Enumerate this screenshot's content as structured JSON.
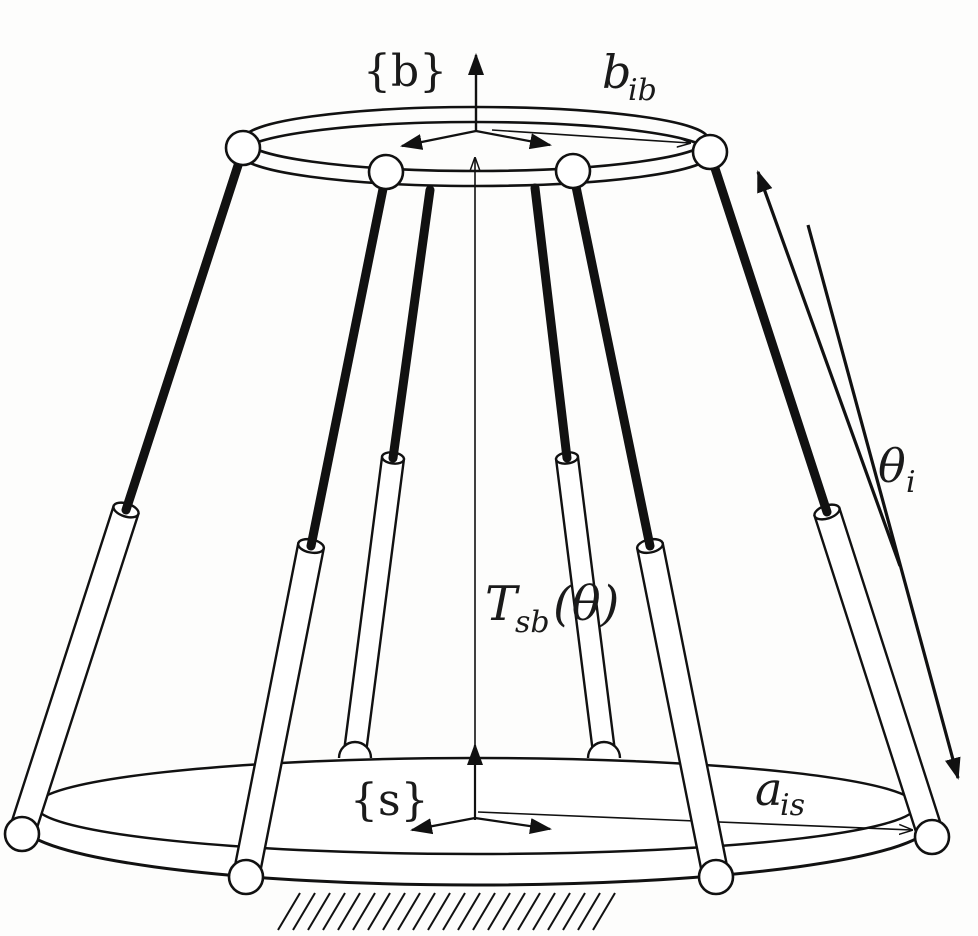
{
  "diagram": {
    "labels": {
      "body_frame": "{b}",
      "space_frame": "{s}",
      "transform_main": "T",
      "transform_sub": "sb",
      "transform_arg": "(θ)",
      "leg_angle_main": "θ",
      "leg_angle_sub": "i",
      "top_vector_main": "b",
      "top_vector_sub": "ib",
      "base_vector_main": "a",
      "base_vector_sub": "is"
    },
    "colors": {
      "line": "#111111",
      "background": "#fdfdfc",
      "fill": "#ffffff"
    },
    "icons": {
      "ground": "ground-hatch-icon",
      "joint": "spherical-joint-icon"
    }
  }
}
